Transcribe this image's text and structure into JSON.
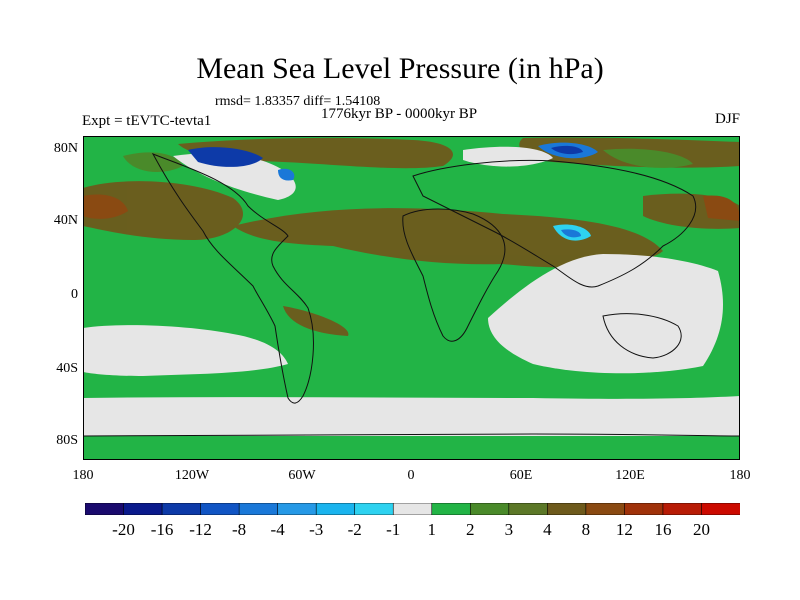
{
  "map": {
    "title": "Mean Sea Level Pressure (in hPa)",
    "stats": "rmsd= 1.83357 diff= 1.54108",
    "period": "1776kyr BP - 0000kyr BP",
    "experiment": "Expt = tEVTC-tevta1",
    "season": "DJF",
    "lat_labels": [
      "80N",
      "40N",
      "0",
      "40S",
      "80S"
    ],
    "lon_labels": [
      "180",
      "120W",
      "60W",
      "0",
      "60E",
      "120E",
      "180"
    ],
    "background_color": "#22b446"
  },
  "colorbar": {
    "colors": [
      "#1a0a6e",
      "#0a1a8c",
      "#0d3aa8",
      "#1155c4",
      "#1a78d8",
      "#2699e6",
      "#1ab4ee",
      "#2ed2f0",
      "#e6e6e6",
      "#22b446",
      "#4a8a2a",
      "#5c7828",
      "#6e5a1c",
      "#8a4a12",
      "#a0320a",
      "#b81c06",
      "#cc0a00"
    ],
    "labels": [
      "-20",
      "-16",
      "-12",
      "-8",
      "-4",
      "-3",
      "-2",
      "-1",
      "1",
      "2",
      "3",
      "4",
      "8",
      "12",
      "16",
      "20"
    ]
  }
}
